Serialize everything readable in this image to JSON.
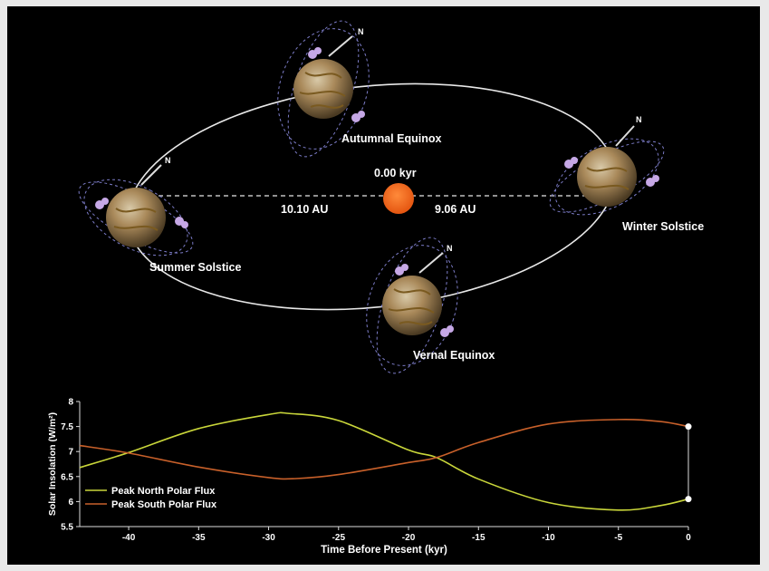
{
  "diagram": {
    "time_label": "0.00 kyr",
    "left_distance": "10.10 AU",
    "right_distance": "9.06 AU",
    "north_symbol": "N",
    "positions": [
      {
        "id": "autumnal",
        "label": "Autumnal Equinox"
      },
      {
        "id": "summer",
        "label": "Summer Solstice"
      },
      {
        "id": "winter",
        "label": "Winter Solstice"
      },
      {
        "id": "vernal",
        "label": "Vernal Equinox"
      }
    ],
    "colors": {
      "sun": "#f26b1d",
      "orbit": "#e8e8e8",
      "planet": "#a98a55",
      "ring": "#8a8ad8",
      "cloud": "#b89ad8"
    }
  },
  "chart_data": {
    "type": "line",
    "xlabel": "Time Before Present (kyr)",
    "ylabel": "Solar Insolation (W/m²)",
    "xlim": [
      -43.5,
      0
    ],
    "ylim": [
      5.5,
      8
    ],
    "xticks": [
      -40,
      -35,
      -30,
      -25,
      -20,
      -15,
      -10,
      -5,
      0
    ],
    "yticks": [
      5.5,
      6,
      6.5,
      7,
      7.5,
      8
    ],
    "series": [
      {
        "name": "Peak North Polar Flux",
        "color": "#c9d63a",
        "x": [
          -43.5,
          -40,
          -35,
          -30,
          -28.5,
          -25,
          -20,
          -18,
          -15,
          -10,
          -5,
          -2,
          0
        ],
        "y": [
          6.68,
          6.98,
          7.46,
          7.74,
          7.76,
          7.62,
          7.03,
          6.88,
          6.45,
          5.98,
          5.83,
          5.92,
          6.05
        ]
      },
      {
        "name": "Peak South Polar Flux",
        "color": "#c8602a",
        "x": [
          -43.5,
          -40,
          -35,
          -30,
          -28,
          -25,
          -20,
          -18,
          -15,
          -10,
          -5,
          -2,
          0
        ],
        "y": [
          7.12,
          6.97,
          6.69,
          6.48,
          6.46,
          6.54,
          6.78,
          6.88,
          7.18,
          7.55,
          7.64,
          7.6,
          7.5
        ]
      }
    ],
    "markers": [
      {
        "x": 0,
        "y": 7.5
      },
      {
        "x": 0,
        "y": 6.05
      }
    ],
    "legend": "lower-left",
    "grid": false
  }
}
